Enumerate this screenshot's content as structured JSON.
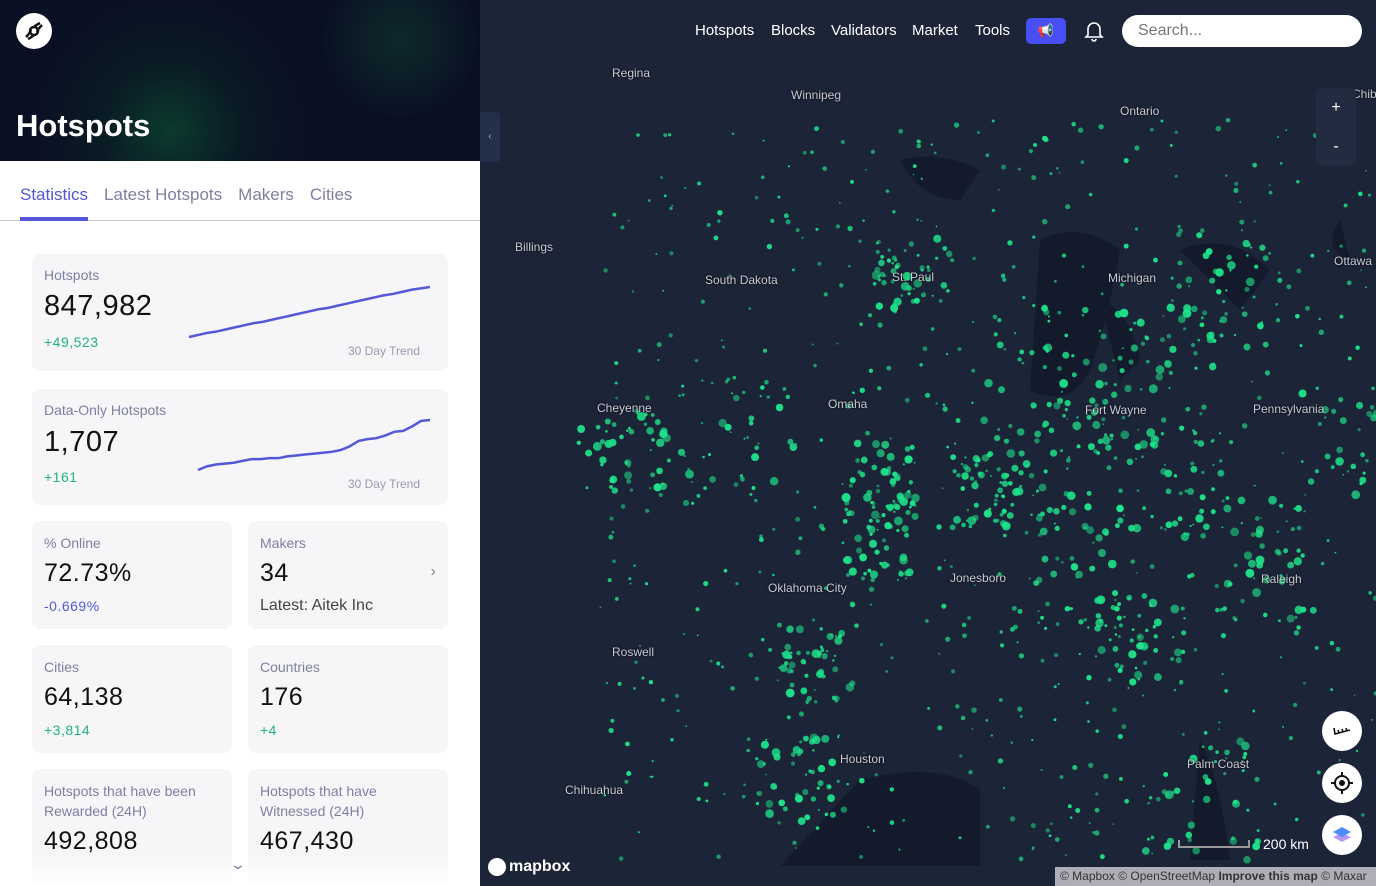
{
  "header": {
    "title": "Hotspots"
  },
  "tabs": [
    {
      "label": "Statistics",
      "active": true
    },
    {
      "label": "Latest Hotspots"
    },
    {
      "label": "Makers"
    },
    {
      "label": "Cities"
    }
  ],
  "stats": {
    "hotspots": {
      "label": "Hotspots",
      "value": "847,982",
      "change": "+49,523",
      "trend_label": "30 Day Trend",
      "trend": [
        0,
        3,
        6,
        8,
        11,
        14,
        17,
        20,
        22,
        25,
        28,
        31,
        34,
        37,
        40,
        42,
        45,
        48,
        51,
        54,
        57,
        60,
        62,
        65,
        68,
        70,
        72
      ]
    },
    "data_only": {
      "label": "Data-Only Hotspots",
      "value": "1,707",
      "change": "+161",
      "trend_label": "30 Day Trend",
      "trend": [
        0,
        4,
        6,
        7,
        8,
        10,
        12,
        12,
        13,
        13,
        15,
        16,
        17,
        18,
        19,
        20,
        22,
        26,
        32,
        34,
        35,
        38,
        42,
        43,
        48,
        54,
        55
      ]
    },
    "online": {
      "label": "% Online",
      "value": "72.73%",
      "change": "-0.669%"
    },
    "makers": {
      "label": "Makers",
      "value": "34",
      "latest": "Latest: Aitek Inc"
    },
    "cities": {
      "label": "Cities",
      "value": "64,138",
      "change": "+3,814"
    },
    "countries": {
      "label": "Countries",
      "value": "176",
      "change": "+4"
    },
    "rewarded": {
      "label": "Hotspots that have been Rewarded (24H)",
      "value": "492,808"
    },
    "witnessed": {
      "label": "Hotspots that have Witnessed (24H)",
      "value": "467,430"
    }
  },
  "nav": {
    "items": [
      "Hotspots",
      "Blocks",
      "Validators",
      "Market",
      "Tools"
    ],
    "search_placeholder": "Search..."
  },
  "map": {
    "labels": [
      "Regina",
      "Winnipeg",
      "Ontario",
      "Billings",
      "South Dakota",
      "St. Paul",
      "Michigan",
      "Ottawa",
      "Cheyenne",
      "Omaha",
      "Fort Wayne",
      "Pennsylvania",
      "Oklahoma City",
      "Jonesboro",
      "Raleigh",
      "Roswell",
      "Houston",
      "Chihuahua",
      "Palm Coast",
      "Chib"
    ],
    "zoom_in": "+",
    "zoom_out": "-",
    "scale": "200 km",
    "brand": "mapbox",
    "attribution": {
      "mapbox": "© Mapbox",
      "osm": "© OpenStreetMap",
      "improve": "Improve this map",
      "maxar": "© Maxar"
    },
    "dot_color": "#1ee38a"
  },
  "colors": {
    "accent": "#5458d8",
    "positive": "#22b37a"
  }
}
